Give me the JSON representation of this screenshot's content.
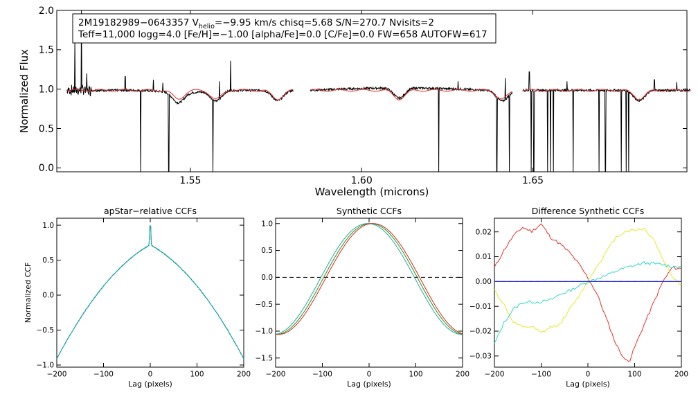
{
  "chart_data": [
    {
      "type": "line",
      "panel": "spectrum",
      "title": "",
      "annotation": {
        "line1_pre": "2M19182989−0643357  V",
        "line1_sub": "helio",
        "line1_post": "=−9.95 km/s  chisq=5.68  S/N=270.7  Nvisits=2",
        "line2": "Teff=11,000 logg=4.0 [Fe/H]=−1.00 [alpha/Fe]=0.0 [C/Fe]=0.0 FW=658 AUTOFW=617"
      },
      "xlabel": "Wavelength (microns)",
      "ylabel": "Normalized Flux",
      "xlim": [
        1.511,
        1.695
      ],
      "ylim": [
        -0.05,
        2.0
      ],
      "xticks": [
        1.55,
        1.6,
        1.65
      ],
      "xtick_labels": [
        "1.55",
        "1.60",
        "1.65"
      ],
      "yticks": [
        0.0,
        0.5,
        1.0,
        1.5,
        2.0
      ],
      "ytick_labels": [
        "0.0",
        "0.5",
        "1.0",
        "1.5",
        "2.0"
      ],
      "chip_ranges": [
        [
          1.514,
          1.58
        ],
        [
          1.585,
          1.644
        ],
        [
          1.647,
          1.696
        ]
      ],
      "absorption_lines": [
        1.5465,
        1.5575,
        1.5755,
        1.611,
        1.641,
        1.6811
      ],
      "bad_pixel_drops": [
        1.5355,
        1.5437,
        1.5566,
        1.6225,
        1.6395,
        1.6432,
        1.6495,
        1.6503,
        1.6543,
        1.6552,
        1.656,
        1.6618,
        1.6693,
        1.6712,
        1.6758,
        1.6773,
        1.678
      ],
      "emission_spikes": [
        {
          "x": 1.5163,
          "y": 1.62
        },
        {
          "x": 1.5182,
          "y": 2.0
        },
        {
          "x": 1.5198,
          "y": 1.2
        },
        {
          "x": 1.531,
          "y": 1.16
        },
        {
          "x": 1.5392,
          "y": 1.12
        },
        {
          "x": 1.542,
          "y": 1.08
        },
        {
          "x": 1.5618,
          "y": 1.36
        },
        {
          "x": 1.5585,
          "y": 1.1
        },
        {
          "x": 1.6282,
          "y": 1.1
        },
        {
          "x": 1.642,
          "y": 1.14
        },
        {
          "x": 1.649,
          "y": 1.22
        },
        {
          "x": 1.66,
          "y": 1.1
        },
        {
          "x": 1.6855,
          "y": 1.12
        },
        {
          "x": 1.692,
          "y": 1.09
        }
      ],
      "series": [
        {
          "name": "observed",
          "color": "#000000"
        },
        {
          "name": "synthetic",
          "color": "#e8292a"
        }
      ]
    },
    {
      "type": "line",
      "panel": "apstar",
      "title": "apStar−relative CCFs",
      "xlabel": "Lag (pixels)",
      "ylabel": "Normalized CCF",
      "xlim": [
        -200,
        200
      ],
      "ylim": [
        -1.03,
        1.1
      ],
      "xticks": [
        -200,
        -100,
        0,
        100,
        200
      ],
      "xtick_labels": [
        "−200",
        "−100",
        "0",
        "100",
        "200"
      ],
      "yticks": [
        -1.0,
        -0.5,
        0.0,
        0.5,
        1.0
      ],
      "ytick_labels": [
        "−1.0",
        "−0.5",
        "0.0",
        "0.5",
        "1.0"
      ],
      "series": [
        {
          "name": "visit 1",
          "color": "#1a7fa0"
        },
        {
          "name": "visit 2",
          "color": "#17a8a8"
        }
      ],
      "shape": {
        "peak": 0.72,
        "edge": -0.91,
        "spike_top": 0.99
      }
    },
    {
      "type": "line",
      "panel": "synthetic",
      "title": "Synthetic CCFs",
      "xlabel": "Lag (pixels)",
      "ylabel": "",
      "xlim": [
        -200,
        200
      ],
      "ylim": [
        -1.67,
        1.1
      ],
      "xticks": [
        -200,
        -100,
        0,
        100,
        200
      ],
      "xtick_labels": [
        "−200",
        "−100",
        "0",
        "100",
        "200"
      ],
      "yticks": [
        -1.5,
        -1.0,
        -0.5,
        0.0,
        0.5,
        1.0
      ],
      "ytick_labels": [
        "−1.5",
        "−1.0",
        "−0.5",
        "0.0",
        "0.5",
        "1.0"
      ],
      "zero_line": 0.0,
      "series": [
        {
          "name": "teal",
          "color": "#2aa59a",
          "shift": -6
        },
        {
          "name": "green",
          "color": "#2f8f1f",
          "shift": 0
        },
        {
          "name": "red",
          "color": "#cc2a1a",
          "shift": 5
        }
      ],
      "shape": {
        "center": 3,
        "zero_cross": 100,
        "edge": -1.55
      }
    },
    {
      "type": "line",
      "panel": "difference",
      "title": "Difference Synthetic CCFs",
      "xlabel": "Lag (pixels)",
      "ylabel": "",
      "xlim": [
        -200,
        200
      ],
      "ylim": [
        -0.0345,
        0.0255
      ],
      "xticks": [
        -200,
        -100,
        0,
        100,
        200
      ],
      "xtick_labels": [
        "−200",
        "−100",
        "0",
        "100",
        "200"
      ],
      "yticks": [
        -0.03,
        -0.02,
        -0.01,
        0.0,
        0.01,
        0.02
      ],
      "ytick_labels": [
        "−0.03",
        "−0.02",
        "−0.01",
        "0.00",
        "0.01",
        "0.02"
      ],
      "series": [
        {
          "name": "red",
          "color": "#e0302a",
          "x": [
            -200,
            -180,
            -160,
            -140,
            -120,
            -100,
            -90,
            -80,
            -60,
            -40,
            -20,
            0,
            20,
            40,
            60,
            80,
            90,
            100,
            120,
            140,
            160,
            180,
            200
          ],
          "y": [
            0.0055,
            0.0125,
            0.0182,
            0.0218,
            0.0202,
            0.0232,
            0.0205,
            0.0178,
            0.0152,
            0.0118,
            0.0072,
            0.0015,
            -0.0052,
            -0.0152,
            -0.0252,
            -0.0318,
            -0.0315,
            -0.0265,
            -0.0175,
            -0.0088,
            -0.0002,
            0.0055,
            0.0052
          ]
        },
        {
          "name": "yellow",
          "color": "#e8e82a",
          "x": [
            -200,
            -180,
            -160,
            -140,
            -120,
            -100,
            -80,
            -60,
            -40,
            -20,
            0,
            20,
            40,
            60,
            80,
            100,
            120,
            140,
            160,
            180,
            200
          ],
          "y": [
            -0.0035,
            -0.0092,
            -0.0162,
            -0.0185,
            -0.0182,
            -0.0208,
            -0.0185,
            -0.0172,
            -0.0115,
            -0.0062,
            0.0005,
            0.0062,
            0.0122,
            0.0178,
            0.0202,
            0.0208,
            0.0212,
            0.0172,
            0.0092,
            0.0022,
            -0.0015
          ]
        },
        {
          "name": "cyan",
          "color": "#2ad8c8",
          "x": [
            -200,
            -180,
            -160,
            -140,
            -120,
            -100,
            -80,
            -60,
            -40,
            -20,
            0,
            20,
            40,
            60,
            80,
            100,
            120,
            140,
            160,
            180,
            200
          ],
          "y": [
            -0.0252,
            -0.0168,
            -0.0112,
            -0.0085,
            -0.0082,
            -0.0082,
            -0.0075,
            -0.0052,
            -0.0038,
            -0.0018,
            -0.0002,
            0.0012,
            0.0025,
            0.0042,
            0.0055,
            0.0065,
            0.0075,
            0.0072,
            0.0068,
            0.006,
            0.0062
          ]
        },
        {
          "name": "blue",
          "color": "#2a2ad8",
          "x": [
            -200,
            200
          ],
          "y": [
            0.0,
            0.0
          ]
        }
      ],
      "zero_line": 0.0
    }
  ]
}
